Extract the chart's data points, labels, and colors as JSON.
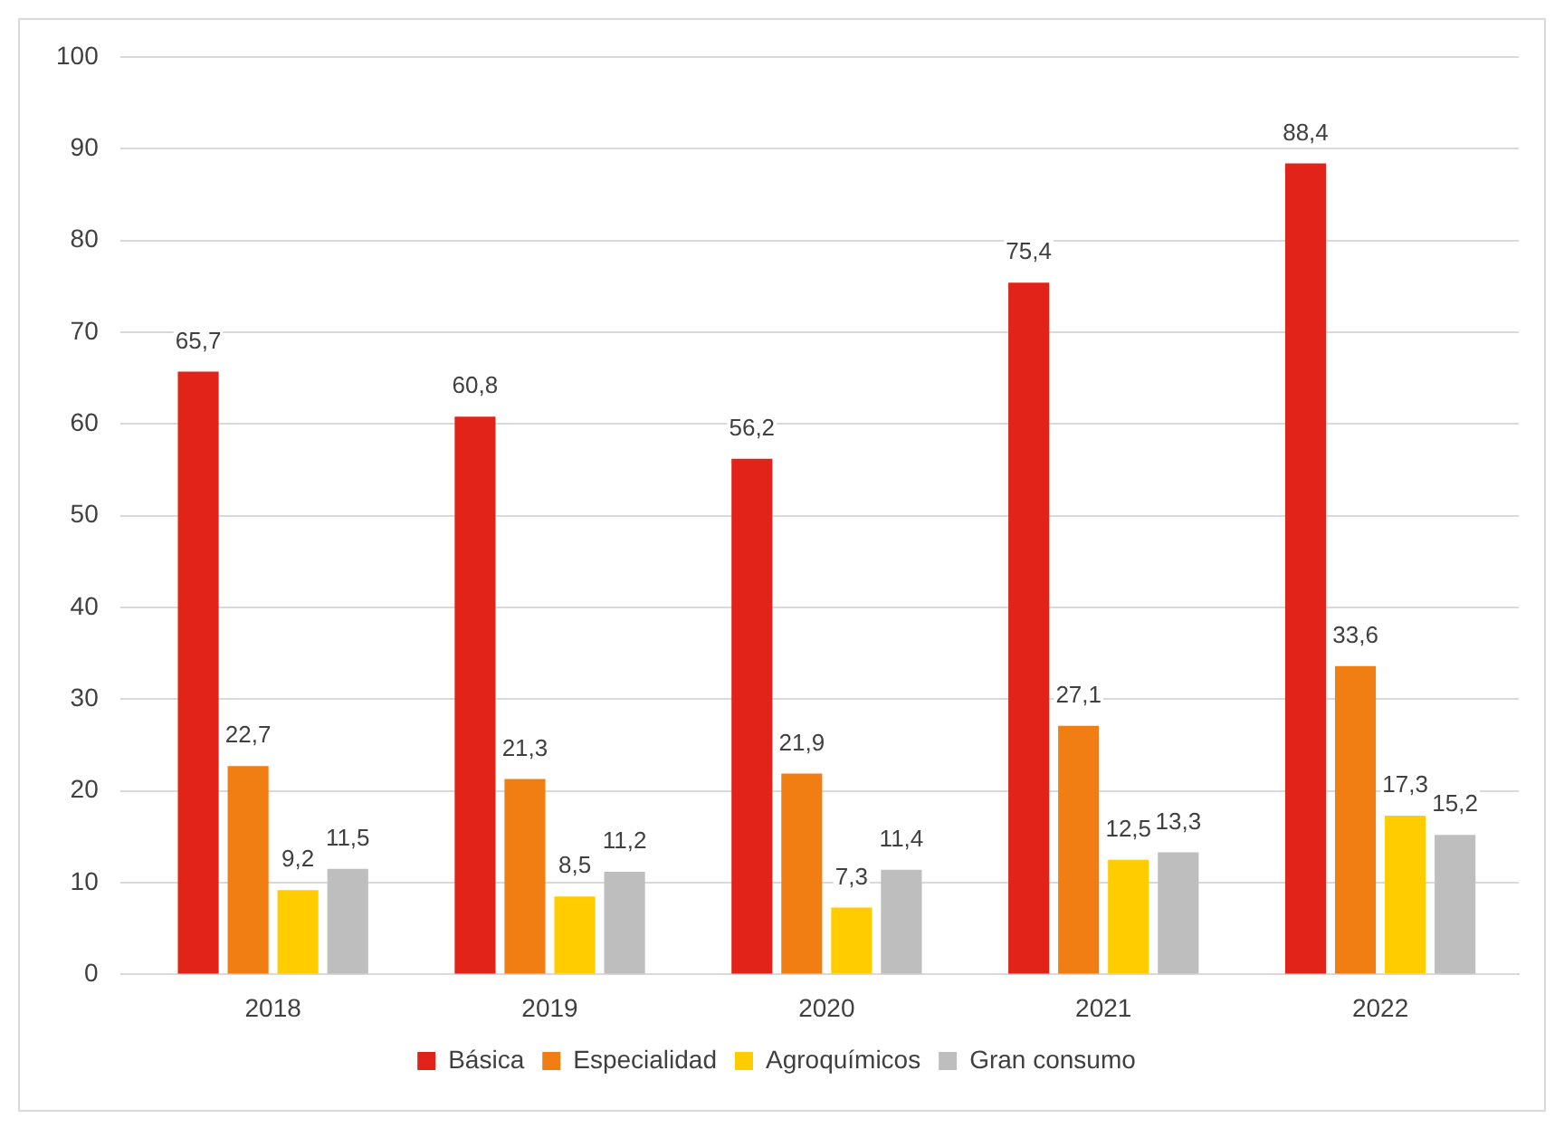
{
  "chart_data": {
    "type": "bar",
    "categories": [
      "2018",
      "2019",
      "2020",
      "2021",
      "2022"
    ],
    "series": [
      {
        "name": "Básica",
        "color": "#e2231a",
        "values": [
          65.7,
          60.8,
          56.2,
          75.4,
          88.4
        ],
        "value_labels": [
          "65,7",
          "60,8",
          "56,2",
          "75,4",
          "88,4"
        ]
      },
      {
        "name": "Especialidad",
        "color": "#f07e12",
        "values": [
          22.7,
          21.3,
          21.9,
          27.1,
          33.6
        ],
        "value_labels": [
          "22,7",
          "21,3",
          "21,9",
          "27,1",
          "33,6"
        ]
      },
      {
        "name": "Agroquímicos",
        "color": "#ffcc00",
        "values": [
          9.2,
          8.5,
          7.3,
          12.5,
          17.3
        ],
        "value_labels": [
          "9,2",
          "8,5",
          "7,3",
          "12,5",
          "17,3"
        ]
      },
      {
        "name": "Gran consumo",
        "color": "#bfbebe",
        "values": [
          11.5,
          11.2,
          11.4,
          13.3,
          15.2
        ],
        "value_labels": [
          "11,5",
          "11,2",
          "11,4",
          "13,3",
          "15,2"
        ]
      }
    ],
    "ylim": [
      0,
      100
    ],
    "yticks": [
      0,
      10,
      20,
      30,
      40,
      50,
      60,
      70,
      80,
      90,
      100
    ],
    "grid": "y",
    "legend": "bottom"
  }
}
